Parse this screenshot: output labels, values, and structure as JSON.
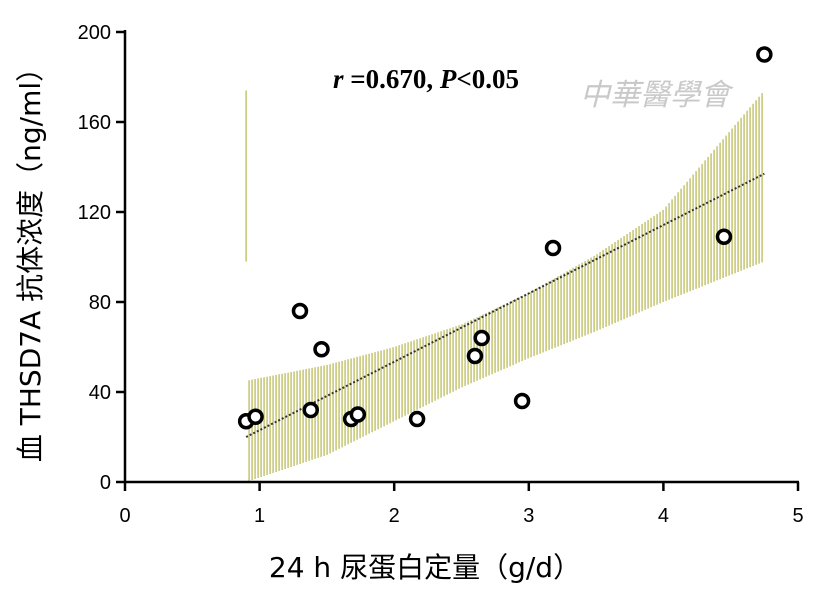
{
  "chart_data": {
    "type": "scatter",
    "xlabel": "24 h 尿蛋白定量（g/d）",
    "ylabel": "血 THSD7A 抗体浓度（ng/ml）",
    "xlim": [
      0,
      5
    ],
    "ylim": [
      0,
      200
    ],
    "x_ticks": [
      "0",
      "1",
      "2",
      "3",
      "4",
      "5"
    ],
    "y_ticks": [
      "0",
      "40",
      "80",
      "120",
      "160",
      "200"
    ],
    "grid": false,
    "points": [
      {
        "x": 0.9,
        "y": 27
      },
      {
        "x": 0.97,
        "y": 29
      },
      {
        "x": 1.3,
        "y": 76
      },
      {
        "x": 1.38,
        "y": 32
      },
      {
        "x": 1.46,
        "y": 59
      },
      {
        "x": 1.68,
        "y": 28
      },
      {
        "x": 1.73,
        "y": 30
      },
      {
        "x": 2.17,
        "y": 28
      },
      {
        "x": 2.6,
        "y": 56
      },
      {
        "x": 2.65,
        "y": 64
      },
      {
        "x": 2.95,
        "y": 36
      },
      {
        "x": 3.18,
        "y": 104
      },
      {
        "x": 4.45,
        "y": 109
      },
      {
        "x": 4.75,
        "y": 190
      }
    ],
    "fit_line": {
      "x": [
        0.9,
        4.75
      ],
      "y": [
        20,
        137
      ]
    },
    "confidence_band": {
      "x": [
        0.9,
        1.5,
        2.0,
        2.5,
        3.0,
        3.5,
        4.0,
        4.75
      ],
      "upper": [
        45,
        52,
        60,
        70,
        84,
        101,
        121,
        174
      ],
      "lower": [
        0,
        12,
        27,
        42,
        55,
        67,
        80,
        98
      ]
    },
    "annotation": "r =0.670, P<0.05",
    "annotation_r": "r",
    "annotation_mid": " =0.670, ",
    "annotation_p": "P",
    "annotation_end": "<0.05",
    "watermark": "中華醫學會",
    "colors": {
      "band": "#c8c87a",
      "point_stroke": "#000000",
      "point_fill": "#ffffff",
      "fit": "#333333"
    }
  }
}
